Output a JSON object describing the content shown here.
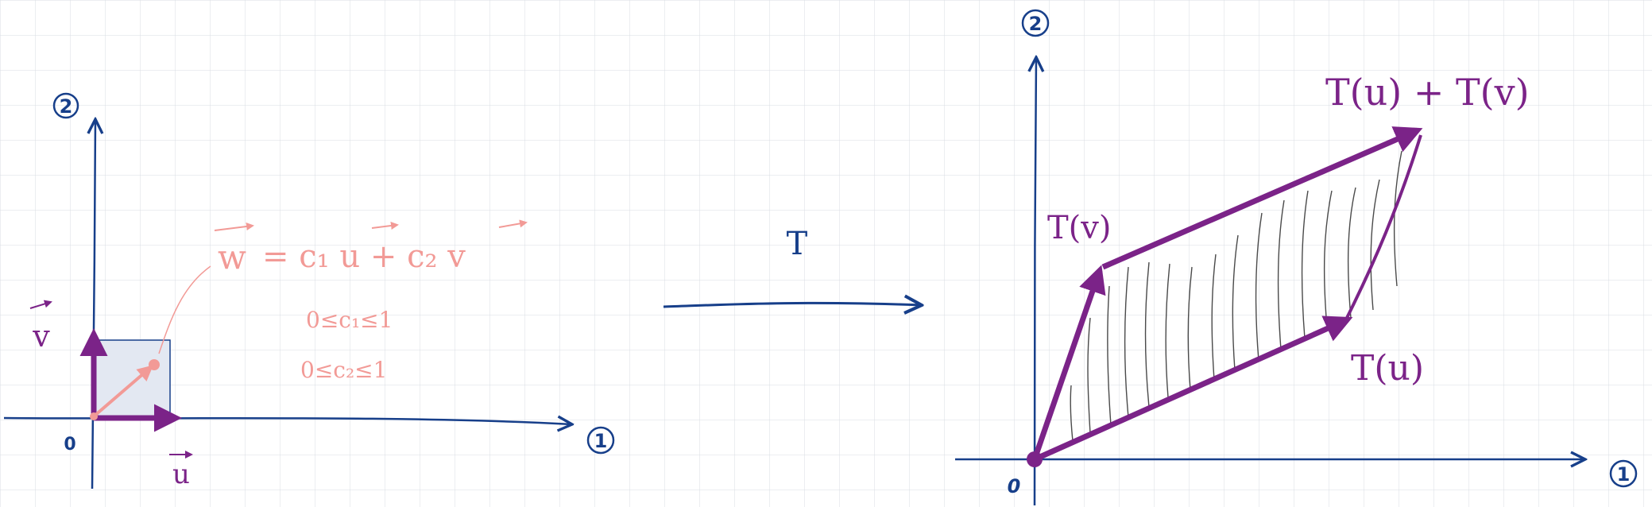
{
  "colors": {
    "grid": "#d9dde3",
    "axis": "#173f8a",
    "vector": "#7b2388",
    "combo": "#f29a96",
    "square_fill": "#e3e8f2",
    "hatch": "#4a4a4a"
  },
  "left_panel": {
    "axis1_label": "1",
    "axis2_label": "2",
    "origin_label": "0",
    "u_label": "u",
    "v_label": "v",
    "w_label": "w",
    "equation_text": "= c₁ u + c₂ v",
    "constraint1": "0≤c₁≤1",
    "constraint2": "0≤c₂≤1"
  },
  "middle": {
    "transform_label": "T"
  },
  "right_panel": {
    "axis1_label": "1",
    "axis2_label": "2",
    "origin_label": "0",
    "Tu_label": "T(u)",
    "Tv_label": "T(v)",
    "sum_label": "T(u) + T(v)"
  }
}
